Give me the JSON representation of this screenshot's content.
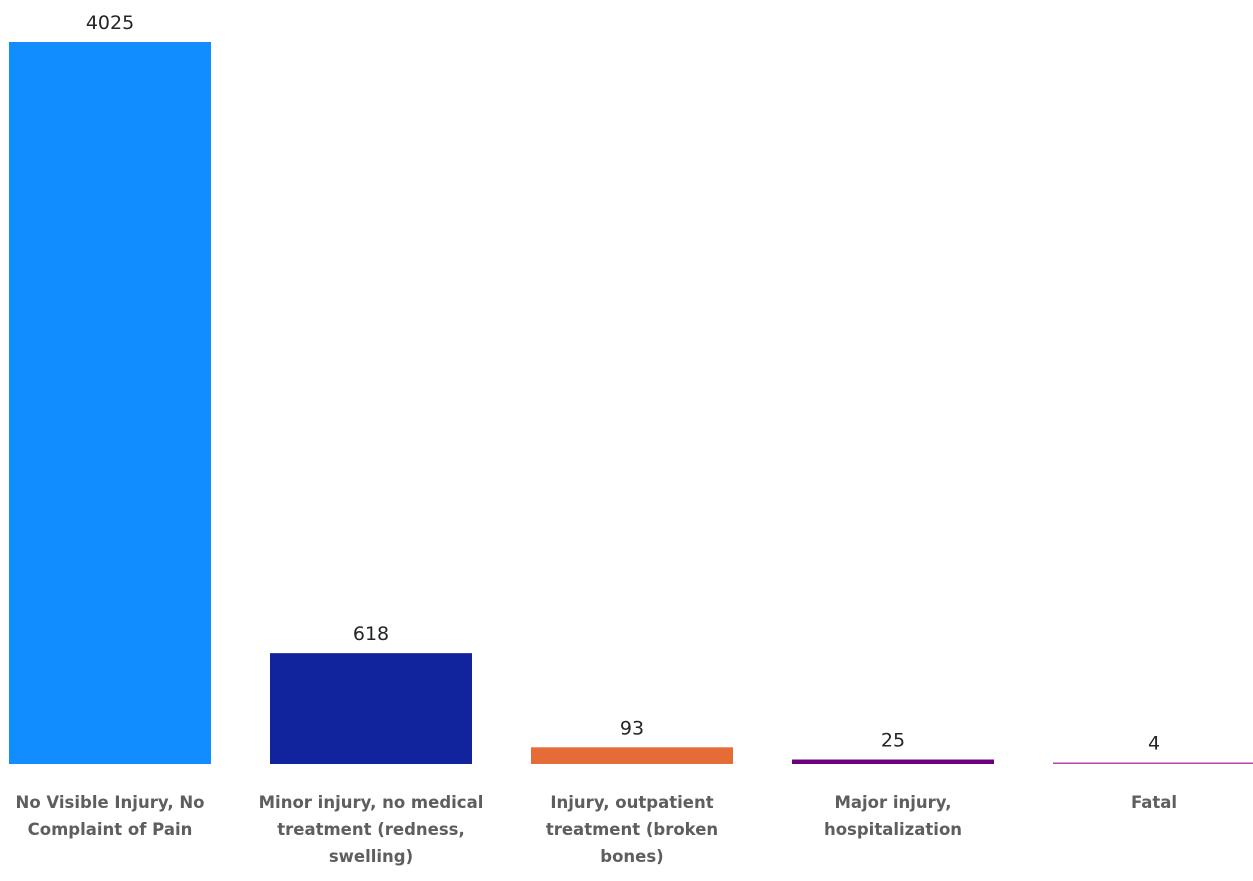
{
  "chart_data": {
    "type": "bar",
    "categories": [
      "No Visible Injury, No Complaint of Pain",
      "Minor injury, no medical treatment (redness, swelling)",
      "Injury, outpatient treatment (broken bones)",
      "Major injury, hospitalization",
      "Fatal"
    ],
    "values": [
      4025,
      618,
      93,
      25,
      4
    ],
    "data_labels": [
      "4025",
      "618",
      "93",
      "25",
      "4"
    ],
    "colors": [
      "#118DFF",
      "#12239E",
      "#E66C37",
      "#6B007B",
      "#B845A7"
    ],
    "ylim": [
      0,
      4025
    ],
    "grid": false,
    "legend": "none"
  }
}
